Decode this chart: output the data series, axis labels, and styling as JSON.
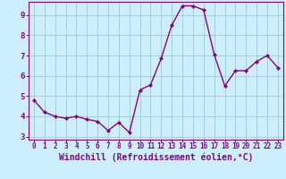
{
  "x": [
    0,
    1,
    2,
    3,
    4,
    5,
    6,
    7,
    8,
    9,
    10,
    11,
    12,
    13,
    14,
    15,
    16,
    17,
    18,
    19,
    20,
    21,
    22,
    23
  ],
  "y": [
    4.8,
    4.2,
    4.0,
    3.9,
    4.0,
    3.85,
    3.75,
    3.3,
    3.7,
    3.2,
    5.3,
    5.55,
    6.85,
    8.5,
    9.45,
    9.45,
    9.25,
    7.05,
    5.5,
    6.25,
    6.25,
    6.7,
    7.0,
    6.4
  ],
  "line_color": "#880088",
  "marker": "D",
  "marker_size": 2.0,
  "linewidth": 1.0,
  "xlabel": "Windchill (Refroidissement éolien,°C)",
  "xlim": [
    -0.5,
    23.5
  ],
  "ylim": [
    2.85,
    9.65
  ],
  "yticks": [
    3,
    4,
    5,
    6,
    7,
    8,
    9
  ],
  "xticks": [
    0,
    1,
    2,
    3,
    4,
    5,
    6,
    7,
    8,
    9,
    10,
    11,
    12,
    13,
    14,
    15,
    16,
    17,
    18,
    19,
    20,
    21,
    22,
    23
  ],
  "background_color": "#cceeff",
  "grid_color": "#99cccc",
  "tick_color": "#880088",
  "label_color": "#880088",
  "x_tick_fontsize": 5.5,
  "y_tick_fontsize": 6.5,
  "xlabel_fontsize": 7.0
}
